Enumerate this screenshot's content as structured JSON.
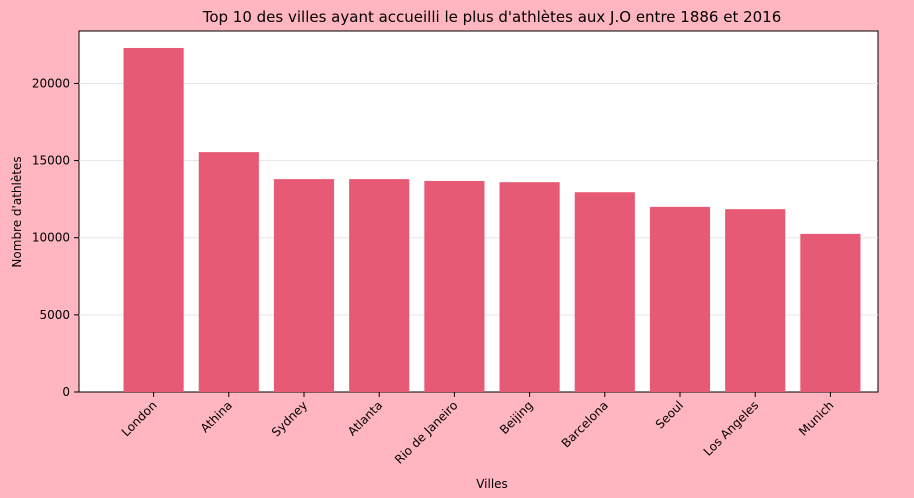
{
  "chart_data": {
    "type": "bar",
    "title": "Top 10 des villes ayant accueilli le plus d'athlètes aux J.O entre 1886 et 2016",
    "xlabel": "Villes",
    "ylabel": "Nombre d'athlètes",
    "categories": [
      "London",
      "Athina",
      "Sydney",
      "Atlanta",
      "Rio de Janeiro",
      "Beijing",
      "Barcelona",
      "Seoul",
      "Los Angeles",
      "Munich"
    ],
    "values": [
      22300,
      15550,
      13800,
      13800,
      13680,
      13600,
      12950,
      12000,
      11850,
      10250
    ],
    "ylim": [
      0,
      23400
    ],
    "yticks": [
      0,
      5000,
      10000,
      15000,
      20000
    ],
    "grid": "horizontal",
    "colors": {
      "bar": "#e75a76",
      "background": "#ffb6c1",
      "plot_background": "#ffffff",
      "grid": "#e6e6e6"
    }
  }
}
